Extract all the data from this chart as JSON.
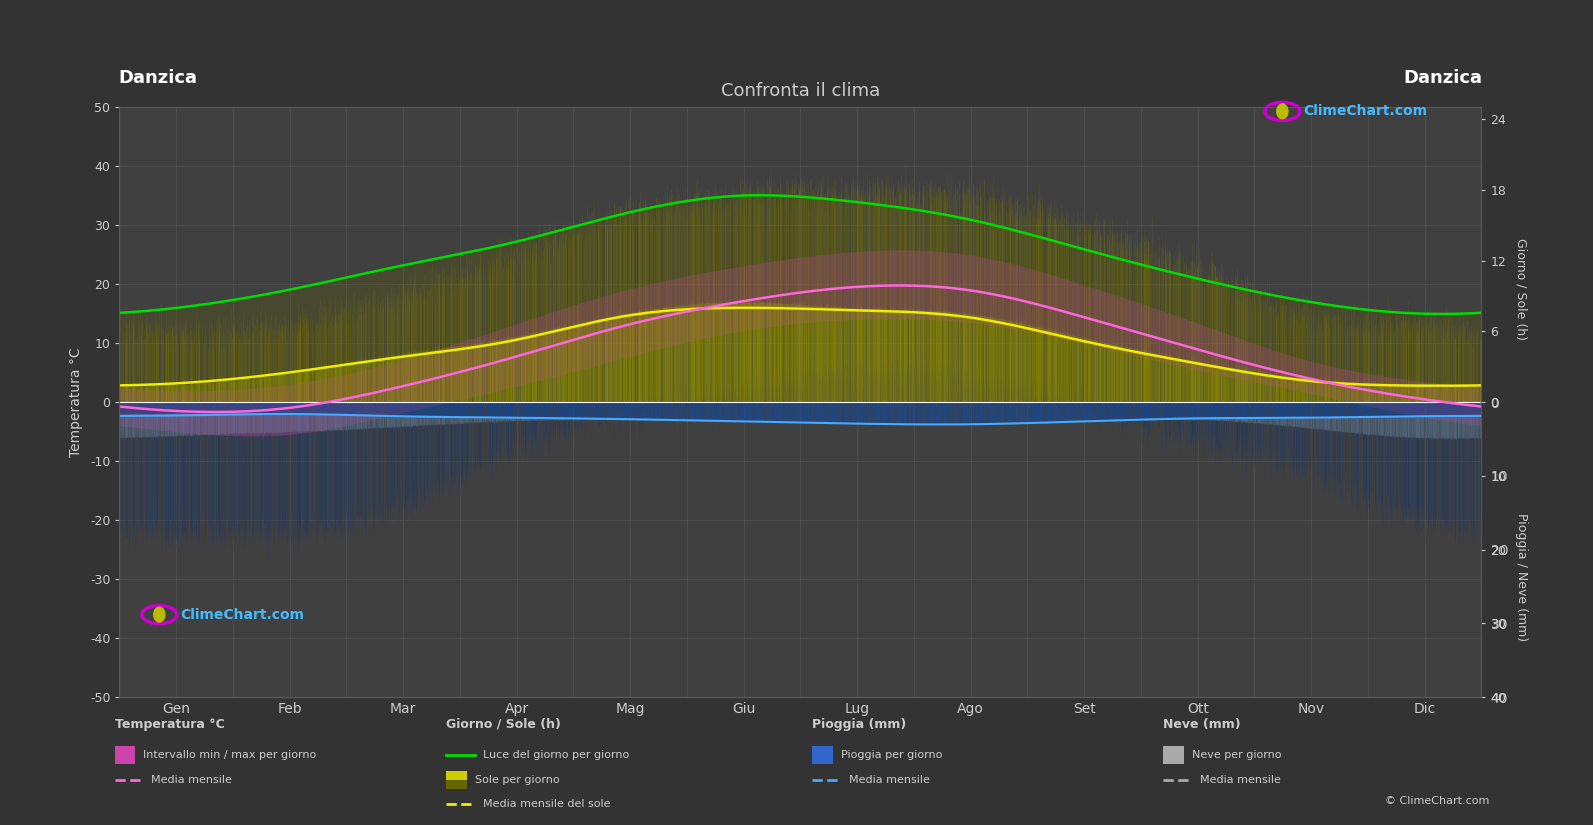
{
  "title": "Confronta il clima",
  "location": "Danzica",
  "bg_color": "#333333",
  "plot_bg_color": "#404040",
  "months": [
    "Gen",
    "Feb",
    "Mar",
    "Apr",
    "Mag",
    "Giu",
    "Lug",
    "Ago",
    "Set",
    "Ott",
    "Nov",
    "Dic"
  ],
  "temp_ylim": [
    -50,
    50
  ],
  "temp_yticks": [
    -50,
    -40,
    -30,
    -20,
    -10,
    0,
    10,
    20,
    30,
    40,
    50
  ],
  "sun_yticks": [
    0,
    6,
    12,
    18,
    24
  ],
  "rain_yticks": [
    0,
    10,
    20,
    30,
    40
  ],
  "sun_scale": 2.0,
  "rain_scale": 1.25,
  "temp_mean_monthly": [
    -1.5,
    -1.0,
    2.5,
    7.5,
    13.0,
    17.0,
    19.5,
    19.0,
    14.5,
    9.0,
    4.0,
    0.5
  ],
  "temp_max_daily_mean": [
    2.0,
    3.0,
    7.0,
    13.0,
    19.0,
    23.0,
    25.5,
    25.0,
    20.0,
    13.5,
    7.0,
    3.5
  ],
  "temp_min_daily_mean": [
    -5.0,
    -5.5,
    -2.0,
    2.5,
    7.5,
    12.0,
    14.0,
    13.5,
    10.0,
    5.5,
    1.5,
    -2.5
  ],
  "temp_max_abs": [
    12,
    13,
    18,
    25,
    32,
    35,
    36,
    35,
    30,
    23,
    15,
    13
  ],
  "temp_min_abs": [
    -22,
    -22,
    -18,
    -8,
    -2,
    2,
    5,
    4,
    -1,
    -6,
    -12,
    -20
  ],
  "daylight_hours": [
    8.0,
    9.5,
    11.5,
    13.5,
    16.0,
    17.5,
    17.0,
    15.5,
    13.0,
    10.5,
    8.5,
    7.5
  ],
  "sunshine_hours_daily": [
    1.5,
    2.5,
    4.0,
    5.5,
    7.5,
    8.5,
    8.0,
    7.5,
    5.5,
    3.5,
    2.0,
    1.5
  ],
  "sunshine_mean": [
    1.6,
    2.5,
    3.8,
    5.2,
    7.3,
    8.0,
    7.8,
    7.2,
    5.2,
    3.3,
    1.8,
    1.4
  ],
  "rain_daily_mm": [
    1.5,
    1.5,
    1.8,
    2.0,
    2.2,
    2.5,
    2.8,
    2.8,
    2.5,
    2.0,
    2.0,
    1.8
  ],
  "rain_mean_mm": [
    1.8,
    1.6,
    1.9,
    2.1,
    2.3,
    2.6,
    2.9,
    3.0,
    2.6,
    2.2,
    2.1,
    1.9
  ],
  "snow_daily_mm": [
    3.0,
    2.5,
    1.5,
    0.5,
    0.1,
    0.0,
    0.0,
    0.0,
    0.0,
    0.3,
    1.5,
    3.0
  ],
  "snow_mean_mm": [
    3.2,
    2.7,
    1.6,
    0.5,
    0.1,
    0.0,
    0.0,
    0.0,
    0.0,
    0.3,
    1.6,
    3.2
  ],
  "colors": {
    "green_line": "#00dd00",
    "yellow_line": "#eeee00",
    "magenta_line": "#ff66dd",
    "white_line": "#ffffff",
    "blue_line": "#44aaff",
    "grey_line": "#aaaaaa",
    "text": "#cccccc",
    "grid": "#585858",
    "title_text": "#cccccc",
    "watermark": "#44bbff"
  }
}
